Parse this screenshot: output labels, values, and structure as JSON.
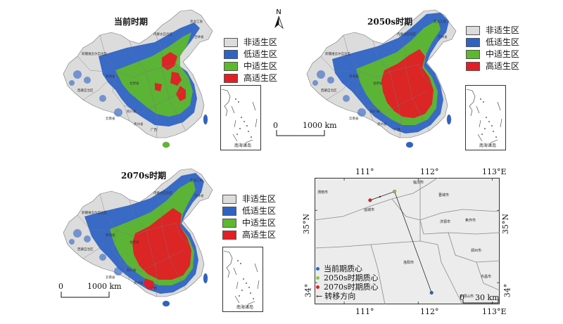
{
  "colors": {
    "unsuitable": "#dcdcdc",
    "low": "#2e63c4",
    "medium": "#5db82e",
    "high": "#e41e25",
    "border": "#777777"
  },
  "legend_items": [
    {
      "label": "非适生区",
      "color": "#dcdcdc"
    },
    {
      "label": "低适生区",
      "color": "#2e63c4"
    },
    {
      "label": "中适生区",
      "color": "#5db82e"
    },
    {
      "label": "高适生区",
      "color": "#e41e25"
    }
  ],
  "panels": {
    "current": {
      "title": "当前时期"
    },
    "p2050": {
      "title": "2050s时期"
    },
    "p2070": {
      "title": "2070s时期"
    }
  },
  "north_label": "N",
  "inset_label": "南海诸岛",
  "scale_bar": {
    "start": "0",
    "end": "1000 km"
  },
  "centroid_map": {
    "x_ticks": [
      "111°",
      "112°",
      "113°E"
    ],
    "y_ticks": [
      "35°N",
      "34°"
    ],
    "y_ticks_right": [
      "35°N",
      "34°"
    ],
    "scale": {
      "start": "0",
      "end": "30 km"
    },
    "places": [
      "临汾市",
      "晋城市",
      "运城市",
      "济源市",
      "焦作市",
      "洛阳市",
      "平顶山市",
      "郑州市",
      "渭南市",
      "许昌市"
    ],
    "legend": [
      {
        "label": "当前期质心",
        "color": "#2e63c4"
      },
      {
        "label": "2050s时期质心",
        "color": "#8cc63f"
      },
      {
        "label": "2070s时期质心",
        "color": "#e41e25"
      },
      {
        "label": "转移方向",
        "color": "#111111"
      }
    ],
    "points": [
      {
        "name": "当前期质心",
        "lon": 112.18,
        "lat": 33.86
      },
      {
        "name": "2050s时期质心",
        "lon": 111.68,
        "lat": 35.26
      },
      {
        "name": "2070s时期质心",
        "lon": 111.35,
        "lat": 35.14
      }
    ]
  },
  "china_tiny_labels": [
    "新疆维吾尔自治区",
    "西藏自治区",
    "青海省",
    "四川省",
    "内蒙古自治区",
    "甘肃省",
    "黑龙江省",
    "吉林省",
    "云南省",
    "贵州省",
    "广西"
  ]
}
